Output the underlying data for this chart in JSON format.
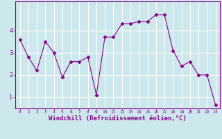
{
  "x": [
    0,
    1,
    2,
    3,
    4,
    5,
    6,
    7,
    8,
    9,
    10,
    11,
    12,
    13,
    14,
    15,
    16,
    17,
    18,
    19,
    20,
    21,
    22,
    23
  ],
  "y": [
    3.6,
    2.8,
    2.2,
    3.5,
    3.0,
    1.9,
    2.6,
    2.6,
    2.8,
    1.1,
    3.7,
    3.7,
    4.3,
    4.3,
    4.4,
    4.4,
    4.7,
    4.7,
    3.1,
    2.4,
    2.6,
    2.0,
    2.0,
    0.65
  ],
  "xlim": [
    -0.5,
    23.5
  ],
  "ylim": [
    0.5,
    5.3
  ],
  "yticks": [
    1,
    2,
    3,
    4
  ],
  "xticks": [
    0,
    1,
    2,
    3,
    4,
    5,
    6,
    7,
    8,
    9,
    10,
    11,
    12,
    13,
    14,
    15,
    16,
    17,
    18,
    19,
    20,
    21,
    22,
    23
  ],
  "xlabel": "Windchill (Refroidissement éolien,°C)",
  "line_color": "#880088",
  "marker": "D",
  "marker_size": 2.5,
  "bg_color": "#cce8ec",
  "grid_color": "#ffffff",
  "xlabel_color": "#880088",
  "xtick_color": "#880088",
  "ytick_color": "#880088",
  "spine_color": "#880088"
}
